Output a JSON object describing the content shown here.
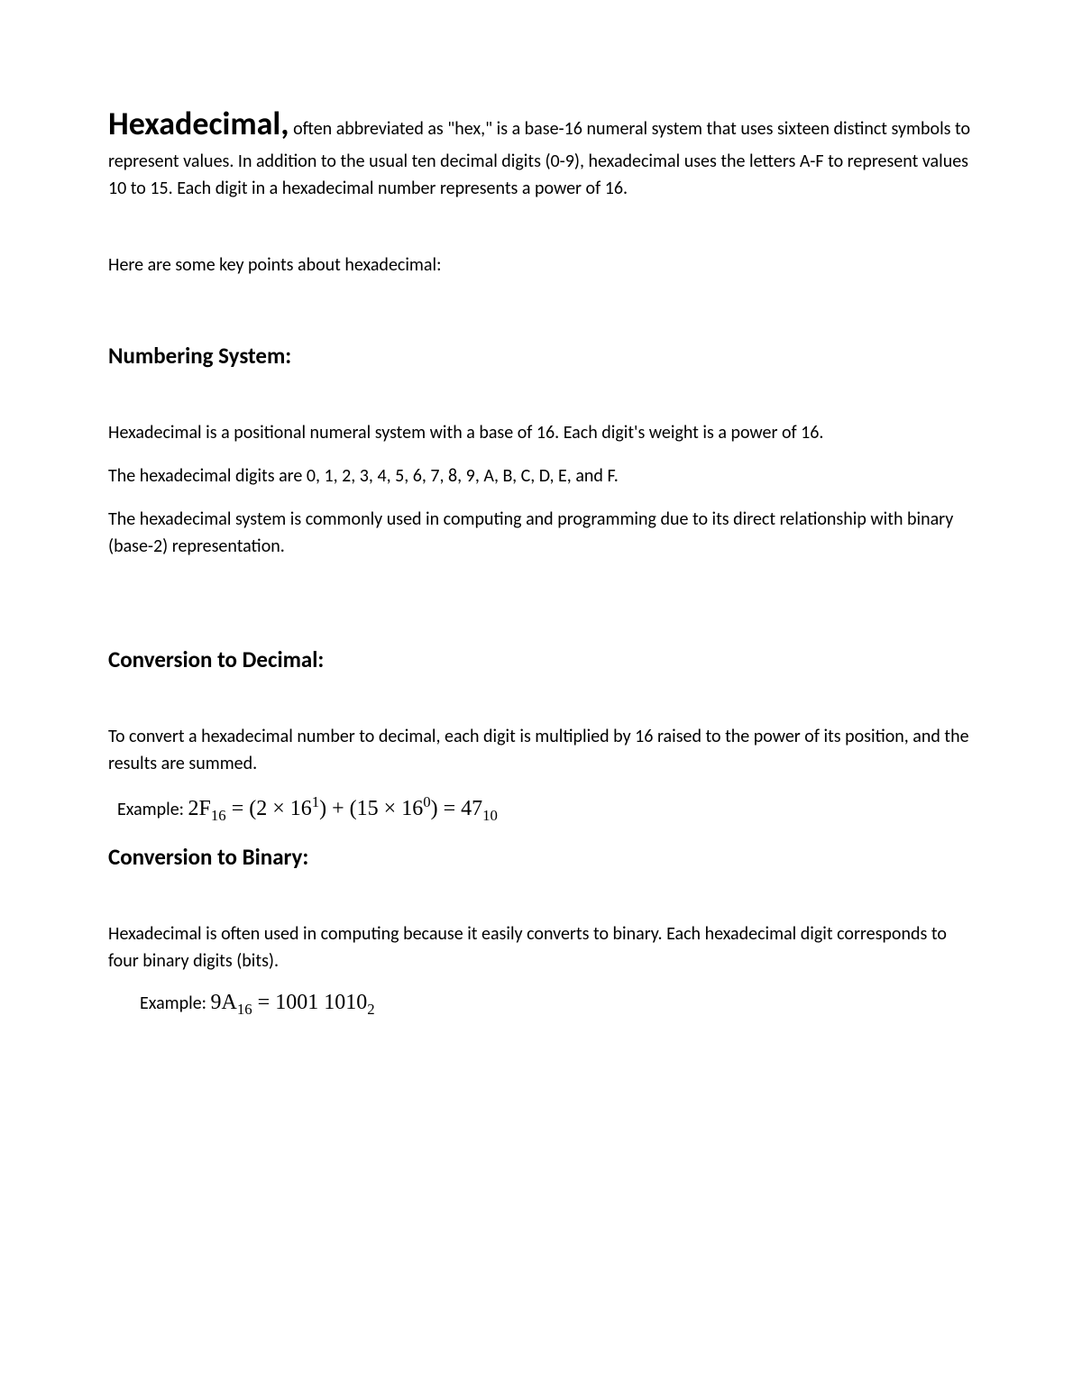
{
  "intro": {
    "title": "Hexadecimal,",
    "text": " often abbreviated as \"hex,\" is a base-16 numeral system that uses sixteen distinct symbols to represent values. In addition to the usual ten decimal digits (0-9), hexadecimal uses the letters A-F to represent values 10 to 15. Each digit in a hexadecimal number represents a power of 16."
  },
  "keyPointsIntro": "Here are some key points about hexadecimal:",
  "sections": {
    "numbering": {
      "heading": "Numbering System:",
      "p1": "Hexadecimal is a positional numeral system with a base of 16. Each digit's weight is a power of 16.",
      "p2": "The hexadecimal digits are 0, 1, 2, 3, 4, 5, 6, 7, 8, 9, A, B, C, D, E, and F.",
      "p3": "The hexadecimal system is commonly used in computing and programming due to its direct relationship with binary (base-2) representation."
    },
    "decimal": {
      "heading": "Conversion to Decimal:",
      "p1": "To convert a hexadecimal number to decimal, each digit is multiplied by 16 raised to the power of its position, and the results are summed.",
      "exampleLabel": "Example: ",
      "formula": {
        "lhs_main": "2F",
        "lhs_sub": "16",
        "eq1": " = (2 × 16",
        "exp1": "1",
        "mid": ") + (15 × 16",
        "exp2": "0",
        "close": ") = 47",
        "rhs_sub": "10"
      }
    },
    "binary": {
      "heading": "Conversion to Binary:",
      "p1": "Hexadecimal is often used in computing because it easily converts to binary. Each hexadecimal digit corresponds to four binary digits (bits).",
      "exampleLabel": "Example: ",
      "formula": {
        "lhs_main": "9A",
        "lhs_sub": "16",
        "eq": " = 1001 1010",
        "rhs_sub": "2"
      }
    }
  }
}
